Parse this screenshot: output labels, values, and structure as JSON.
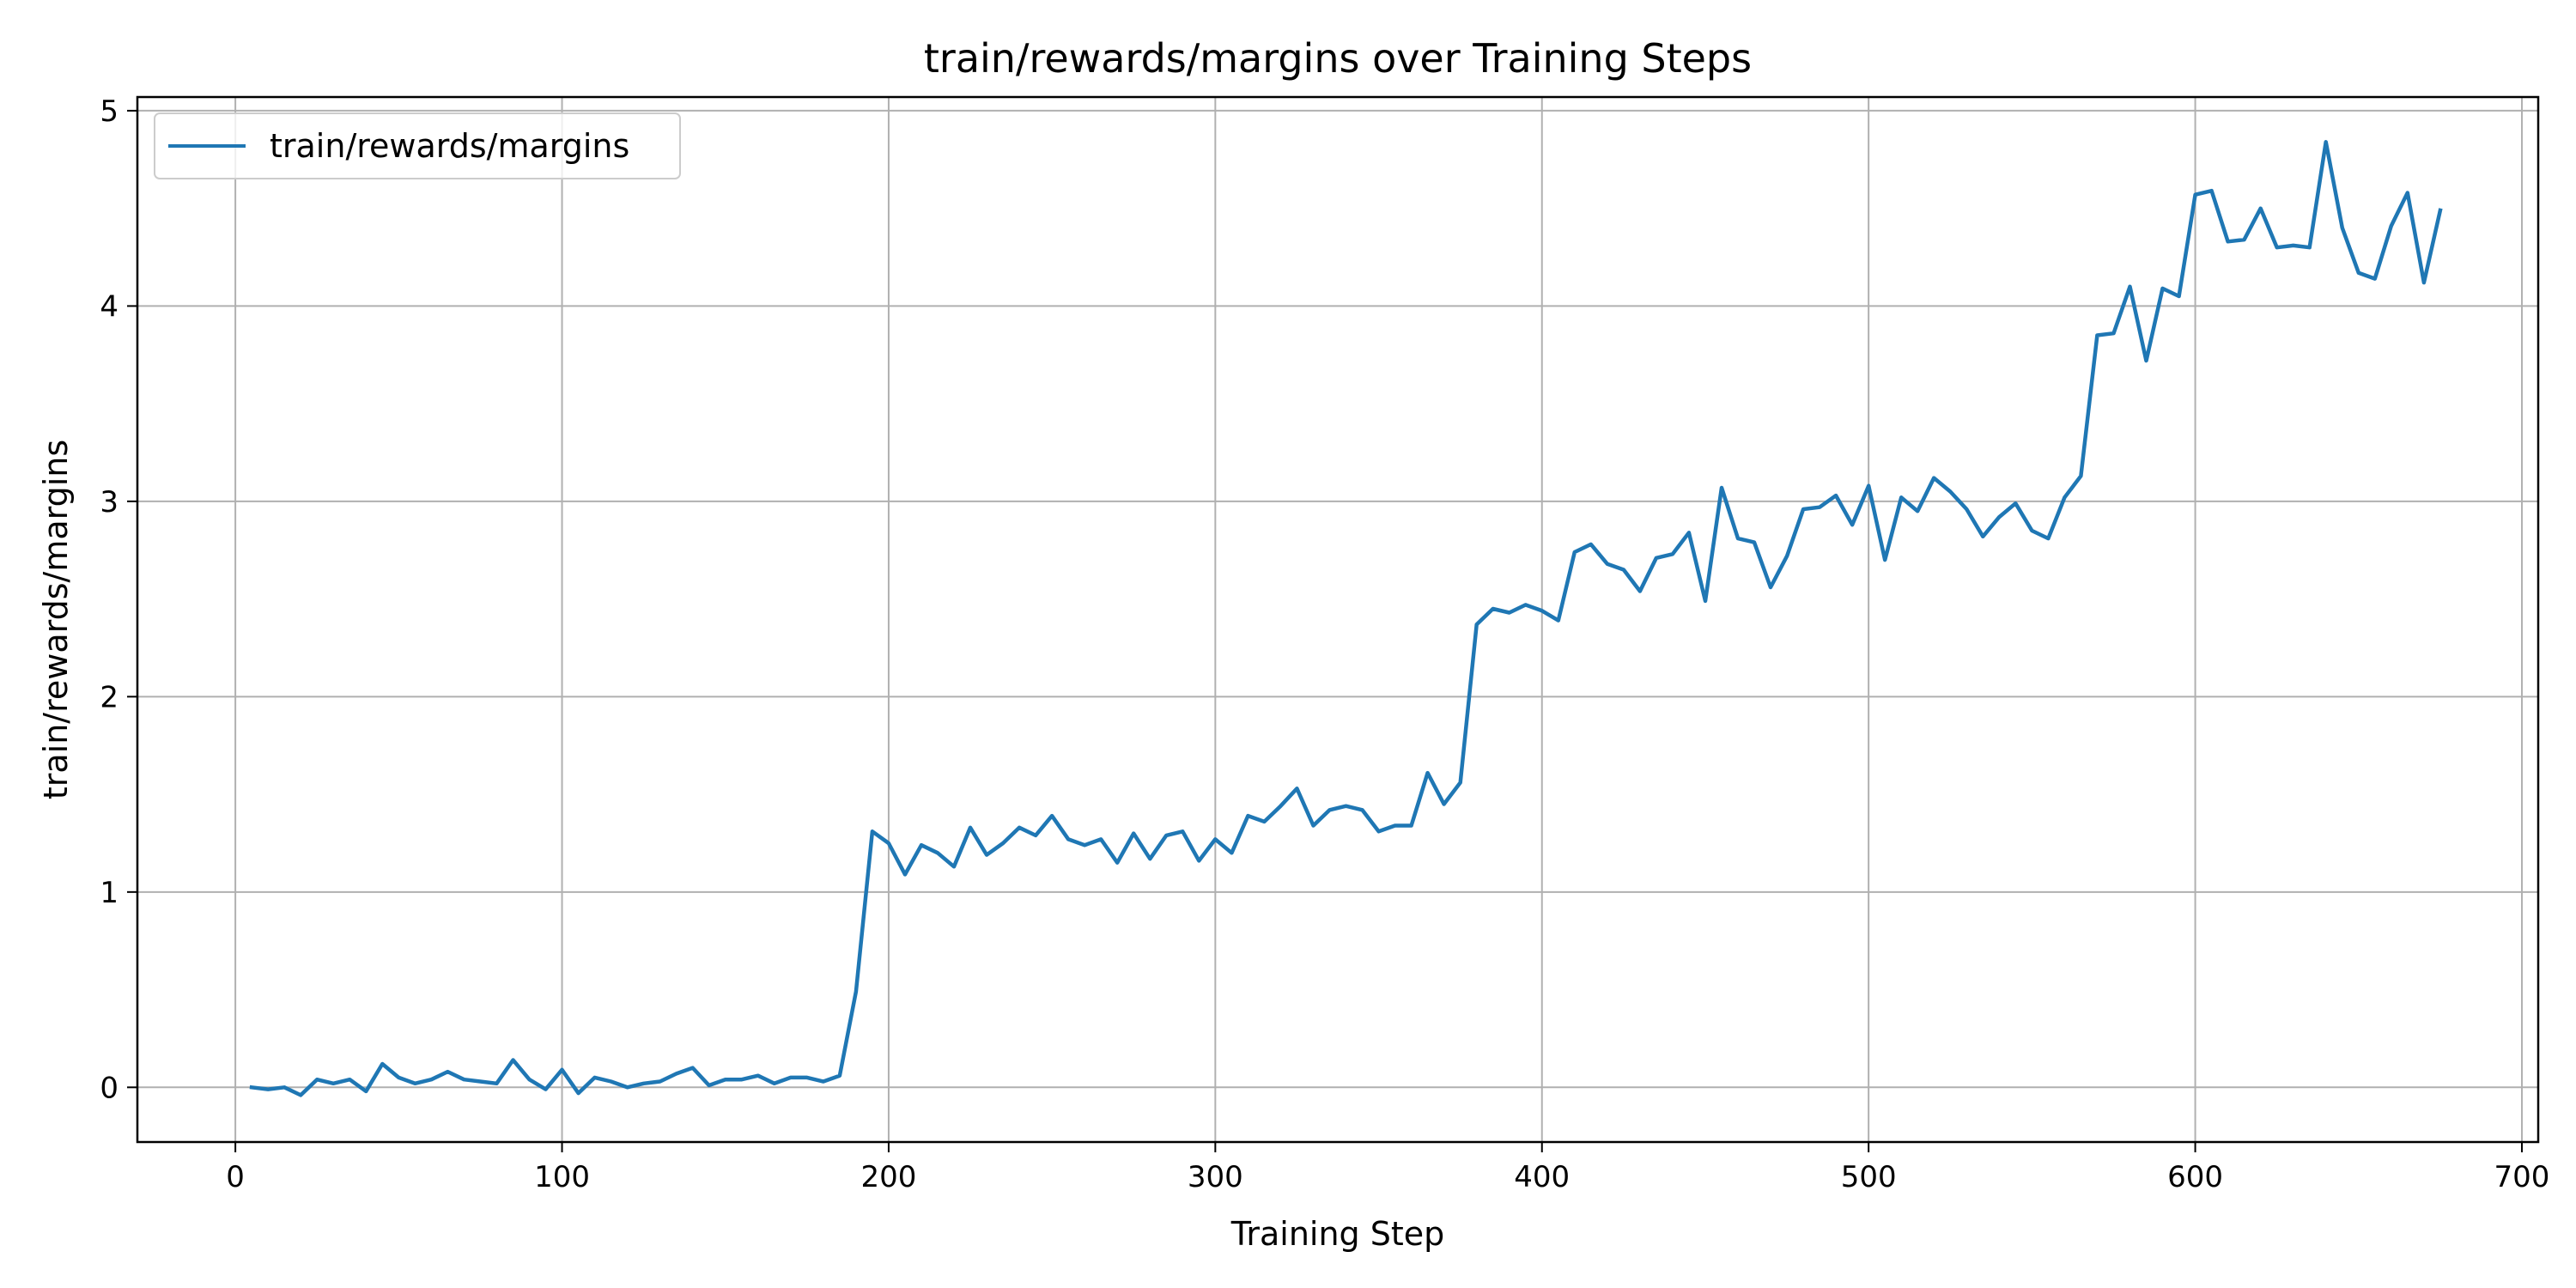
{
  "chart_data": {
    "type": "line",
    "title": "train/rewards/margins over Training Steps",
    "xlabel": "Training Step",
    "ylabel": "train/rewards/margins",
    "xlim": [
      -30,
      705
    ],
    "ylim": [
      -0.28,
      5.07
    ],
    "xticks": [
      0,
      100,
      200,
      300,
      400,
      500,
      600,
      700
    ],
    "yticks": [
      0,
      1,
      2,
      3,
      4,
      5
    ],
    "grid": true,
    "legend_position": "top-left",
    "series": [
      {
        "name": "train/rewards/margins",
        "color": "#1f77b4",
        "x": [
          5,
          10,
          15,
          20,
          25,
          30,
          35,
          40,
          45,
          50,
          55,
          60,
          65,
          70,
          75,
          80,
          85,
          90,
          95,
          100,
          105,
          110,
          115,
          120,
          125,
          130,
          135,
          140,
          145,
          150,
          155,
          160,
          165,
          170,
          175,
          180,
          185,
          190,
          195,
          200,
          205,
          210,
          215,
          220,
          225,
          230,
          235,
          240,
          245,
          250,
          255,
          260,
          265,
          270,
          275,
          280,
          285,
          290,
          295,
          300,
          305,
          310,
          315,
          320,
          325,
          330,
          335,
          340,
          345,
          350,
          355,
          360,
          365,
          370,
          375,
          380,
          385,
          390,
          395,
          400,
          405,
          410,
          415,
          420,
          425,
          430,
          435,
          440,
          445,
          450,
          455,
          460,
          465,
          470,
          475,
          480,
          485,
          490,
          495,
          500,
          505,
          510,
          515,
          520,
          525,
          530,
          535,
          540,
          545,
          550,
          555,
          560,
          565,
          570,
          575,
          580,
          585,
          590,
          595,
          600,
          605,
          610,
          615,
          620,
          625,
          630,
          635,
          640,
          645,
          650,
          655,
          660,
          665,
          670,
          675
        ],
        "y": [
          0.0,
          -0.01,
          0.0,
          -0.04,
          0.04,
          0.02,
          0.04,
          -0.02,
          0.12,
          0.05,
          0.02,
          0.04,
          0.08,
          0.04,
          0.03,
          0.02,
          0.14,
          0.04,
          -0.01,
          0.09,
          -0.03,
          0.05,
          0.03,
          0.0,
          0.02,
          0.03,
          0.07,
          0.1,
          0.01,
          0.04,
          0.04,
          0.06,
          0.02,
          0.05,
          0.05,
          0.03,
          0.06,
          0.49,
          1.31,
          1.25,
          1.09,
          1.24,
          1.2,
          1.13,
          1.33,
          1.19,
          1.25,
          1.33,
          1.29,
          1.39,
          1.27,
          1.24,
          1.27,
          1.15,
          1.3,
          1.17,
          1.29,
          1.31,
          1.16,
          1.27,
          1.2,
          1.39,
          1.36,
          1.44,
          1.53,
          1.34,
          1.42,
          1.44,
          1.42,
          1.31,
          1.34,
          1.34,
          1.61,
          1.45,
          1.56,
          2.37,
          2.45,
          2.43,
          2.47,
          2.44,
          2.39,
          2.74,
          2.78,
          2.68,
          2.65,
          2.54,
          2.71,
          2.73,
          2.84,
          2.49,
          3.07,
          2.81,
          2.79,
          2.56,
          2.72,
          2.96,
          2.97,
          3.03,
          2.88,
          3.08,
          2.7,
          3.02,
          2.95,
          3.12,
          3.05,
          2.96,
          2.82,
          2.92,
          2.99,
          2.85,
          2.81,
          3.02,
          3.13,
          3.85,
          3.86,
          4.1,
          3.72,
          4.09,
          4.05,
          4.57,
          4.59,
          4.33,
          4.34,
          4.5,
          4.3,
          4.31,
          4.3,
          4.84,
          4.4,
          4.17,
          4.14,
          4.41,
          4.58,
          4.12,
          4.49
        ]
      }
    ]
  }
}
